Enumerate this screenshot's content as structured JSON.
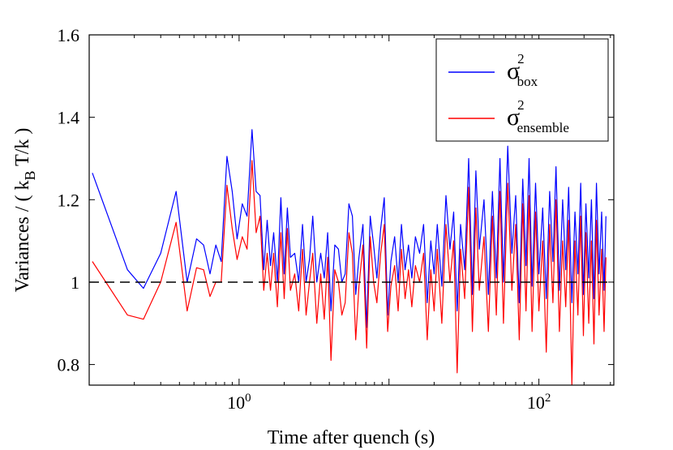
{
  "chart_data": {
    "type": "line",
    "xlabel": "Time after quench (s)",
    "ylabel": {
      "prefix": "Variances  / ( k",
      "subscript": "B",
      "suffix": " T/k )"
    },
    "xscale": "log",
    "xlim": [
      0.1,
      316
    ],
    "ylim": [
      0.75,
      1.6
    ],
    "yticks": [
      {
        "value": 0.8,
        "label": "0.8"
      },
      {
        "value": 1.0,
        "label": "1"
      },
      {
        "value": 1.2,
        "label": "1.2"
      },
      {
        "value": 1.4,
        "label": "1.4"
      },
      {
        "value": 1.6,
        "label": "1.6"
      }
    ],
    "xticks": [
      {
        "value": 1,
        "base": "10",
        "exp": "0"
      },
      {
        "value": 100,
        "base": "10",
        "exp": "2"
      }
    ],
    "reference_line": {
      "y": 1.0,
      "style": "dashed",
      "color": "#000000"
    },
    "grid": false,
    "legend": {
      "position": "top-right",
      "entries": [
        {
          "symbol": "σ",
          "sup": "2",
          "sub": "box",
          "color": "#0000ff"
        },
        {
          "symbol": "σ",
          "sup": "2",
          "sub": "ensemble",
          "color": "#ff0000"
        }
      ]
    },
    "series": [
      {
        "color": "#0000ff",
        "x": [
          0.105,
          0.18,
          0.23,
          0.3,
          0.38,
          0.45,
          0.52,
          0.58,
          0.64,
          0.7,
          0.76,
          0.83,
          0.9,
          0.97,
          1.05,
          1.13,
          1.22,
          1.3,
          1.38,
          1.46,
          1.54,
          1.62,
          1.7,
          1.8,
          1.9,
          2.0,
          2.1,
          2.2,
          2.35,
          2.5,
          2.65,
          2.8,
          2.95,
          3.1,
          3.3,
          3.5,
          3.7,
          3.9,
          4.1,
          4.35,
          4.6,
          4.85,
          5.1,
          5.4,
          5.7,
          6.0,
          6.3,
          6.7,
          7.1,
          7.5,
          7.9,
          8.3,
          8.8,
          9.3,
          9.8,
          10.3,
          10.9,
          11.5,
          12.1,
          12.8,
          13.5,
          14.2,
          15.0,
          16.0,
          17.0,
          18.0,
          19.0,
          20.0,
          21.0,
          22.5,
          24.0,
          25.5,
          27.0,
          28.5,
          30.0,
          32.0,
          34.0,
          36.0,
          38.0,
          40.0,
          43.0,
          46.0,
          49.0,
          52.0,
          55.0,
          58.0,
          62.0,
          66.0,
          70.0,
          74.0,
          78.0,
          82.0,
          86.0,
          90.0,
          95.0,
          100.0,
          106.0,
          112.0,
          118.0,
          124.0,
          130.0,
          137.0,
          144.0,
          151.0,
          158.0,
          166.0,
          174.0,
          182.0,
          190.0,
          198.0,
          206.0,
          215.0,
          224.0,
          233.0,
          242.0,
          252.0,
          262.0,
          272.0,
          280.0
        ],
        "values": [
          1.265,
          1.03,
          0.985,
          1.07,
          1.22,
          1.0,
          1.105,
          1.09,
          1.02,
          1.09,
          1.05,
          1.305,
          1.22,
          1.105,
          1.19,
          1.16,
          1.37,
          1.22,
          1.21,
          1.03,
          1.15,
          1.04,
          1.12,
          1.0,
          1.205,
          1.02,
          1.18,
          1.06,
          1.07,
          1.0,
          1.14,
          1.0,
          1.055,
          1.16,
          1.0,
          1.07,
          1.01,
          1.12,
          0.93,
          1.09,
          1.08,
          1.0,
          1.02,
          1.19,
          1.16,
          0.97,
          1.06,
          1.14,
          0.89,
          1.16,
          1.09,
          1.01,
          1.13,
          1.205,
          0.92,
          1.05,
          1.11,
          1.0,
          1.14,
          1.03,
          1.09,
          1.01,
          1.11,
          1.07,
          1.14,
          0.95,
          1.1,
          1.02,
          1.14,
          0.99,
          1.21,
          1.08,
          1.17,
          0.93,
          1.14,
          1.03,
          1.3,
          0.97,
          1.27,
          1.08,
          1.2,
          0.97,
          1.22,
          1.01,
          1.3,
          1.0,
          1.33,
          1.07,
          1.21,
          0.95,
          1.25,
          1.04,
          1.3,
          0.99,
          1.24,
          1.02,
          1.18,
          0.96,
          1.22,
          1.05,
          1.28,
          0.98,
          1.2,
          1.03,
          1.23,
          0.95,
          1.17,
          1.02,
          1.24,
          0.97,
          1.19,
          1.01,
          1.2,
          0.96,
          1.24,
          1.02,
          1.17,
          0.98,
          1.16
        ]
      },
      {
        "color": "#ff0000",
        "x": [
          0.105,
          0.18,
          0.23,
          0.3,
          0.38,
          0.45,
          0.52,
          0.58,
          0.64,
          0.7,
          0.76,
          0.83,
          0.9,
          0.97,
          1.05,
          1.13,
          1.22,
          1.3,
          1.38,
          1.46,
          1.54,
          1.62,
          1.7,
          1.8,
          1.9,
          2.0,
          2.1,
          2.2,
          2.35,
          2.5,
          2.65,
          2.8,
          2.95,
          3.1,
          3.3,
          3.5,
          3.7,
          3.9,
          4.1,
          4.35,
          4.6,
          4.85,
          5.1,
          5.4,
          5.7,
          6.0,
          6.3,
          6.7,
          7.1,
          7.5,
          7.9,
          8.3,
          8.8,
          9.3,
          9.8,
          10.3,
          10.9,
          11.5,
          12.1,
          12.8,
          13.5,
          14.2,
          15.0,
          16.0,
          17.0,
          18.0,
          19.0,
          20.0,
          21.0,
          22.5,
          24.0,
          25.5,
          27.0,
          28.5,
          30.0,
          32.0,
          34.0,
          36.0,
          38.0,
          40.0,
          43.0,
          46.0,
          49.0,
          52.0,
          55.0,
          58.0,
          62.0,
          66.0,
          70.0,
          74.0,
          78.0,
          82.0,
          86.0,
          90.0,
          95.0,
          100.0,
          106.0,
          112.0,
          118.0,
          124.0,
          130.0,
          137.0,
          144.0,
          151.0,
          158.0,
          166.0,
          174.0,
          182.0,
          190.0,
          198.0,
          206.0,
          215.0,
          224.0,
          233.0,
          242.0,
          252.0,
          262.0,
          272.0,
          280.0
        ],
        "values": [
          1.05,
          0.92,
          0.91,
          1.0,
          1.145,
          0.93,
          1.035,
          1.03,
          0.965,
          1.0,
          1.0,
          1.235,
          1.13,
          1.055,
          1.11,
          1.08,
          1.295,
          1.12,
          1.16,
          0.98,
          1.07,
          0.98,
          1.07,
          0.94,
          1.12,
          0.96,
          1.13,
          0.98,
          1.02,
          0.93,
          1.08,
          0.92,
          1.0,
          1.07,
          0.9,
          1.02,
          0.91,
          1.06,
          0.81,
          1.03,
          1.0,
          0.92,
          0.95,
          1.12,
          1.07,
          0.86,
          0.99,
          1.09,
          0.84,
          1.11,
          1.0,
          0.95,
          1.07,
          1.14,
          0.88,
          0.99,
          1.04,
          0.93,
          1.08,
          0.96,
          1.03,
          0.94,
          1.04,
          1.0,
          1.07,
          0.86,
          1.03,
          0.93,
          1.08,
          0.9,
          1.14,
          1.0,
          1.1,
          0.78,
          1.08,
          0.96,
          1.23,
          0.88,
          1.18,
          0.98,
          1.11,
          0.88,
          1.16,
          0.92,
          1.22,
          0.9,
          1.24,
          0.98,
          1.14,
          0.86,
          1.19,
          0.93,
          1.21,
          0.88,
          1.17,
          0.93,
          1.1,
          0.83,
          1.14,
          0.95,
          1.2,
          0.88,
          1.1,
          0.94,
          1.15,
          0.75,
          1.1,
          0.92,
          1.16,
          0.87,
          1.12,
          0.9,
          1.1,
          0.85,
          1.15,
          0.92,
          1.08,
          0.88,
          1.06
        ]
      }
    ]
  }
}
